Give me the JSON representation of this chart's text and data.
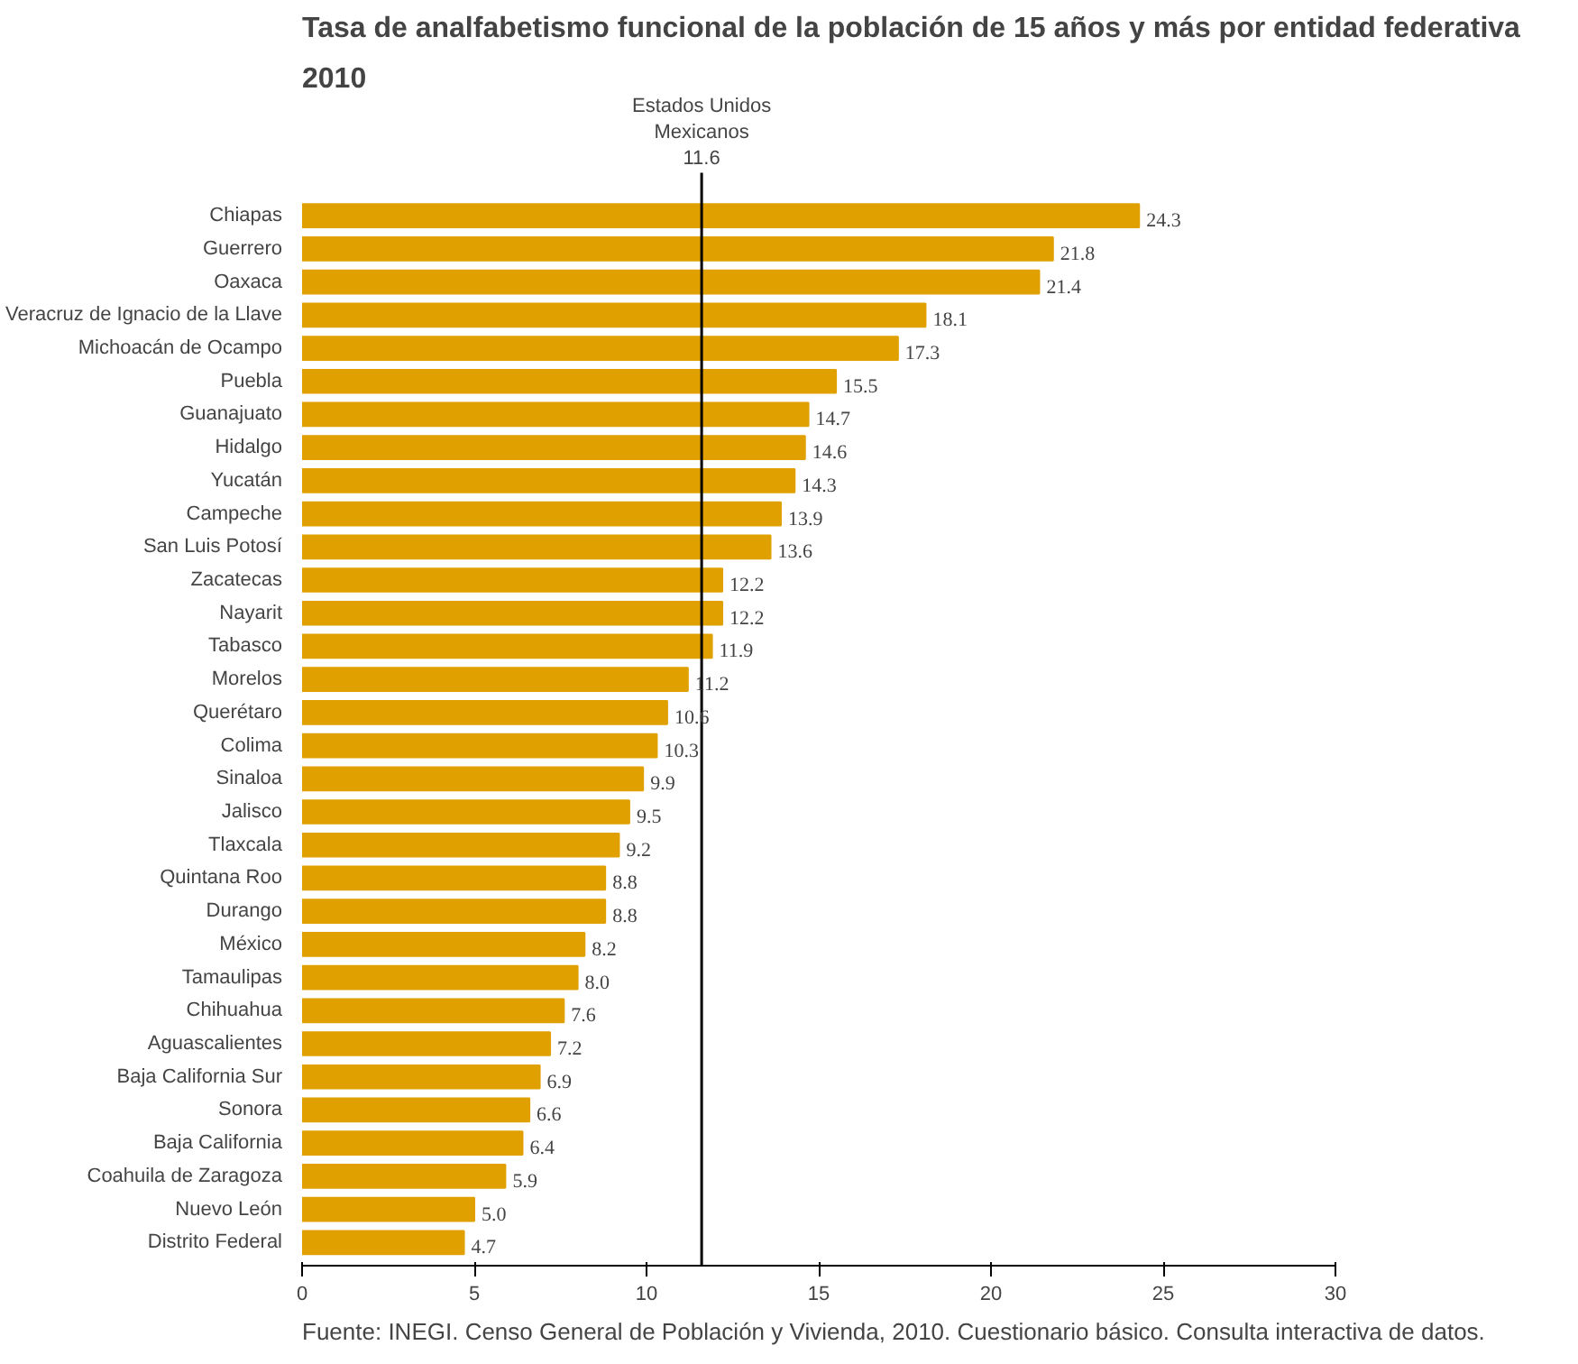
{
  "chart_data": {
    "type": "bar",
    "orientation": "horizontal",
    "title": "Tasa de analfabetismo  funcional de la población de 15 años y más por entidad federativa",
    "subtitle": "2010",
    "categories": [
      "Chiapas",
      "Guerrero",
      "Oaxaca",
      "Veracruz de Ignacio de la Llave",
      "Michoacán de Ocampo",
      "Puebla",
      "Guanajuato",
      "Hidalgo",
      "Yucatán",
      "Campeche",
      "San Luis Potosí",
      "Zacatecas",
      "Nayarit",
      "Tabasco",
      "Morelos",
      "Querétaro",
      "Colima",
      "Sinaloa",
      "Jalisco",
      "Tlaxcala",
      "Quintana Roo",
      "Durango",
      "México",
      "Tamaulipas",
      "Chihuahua",
      "Aguascalientes",
      "Baja California Sur",
      "Sonora",
      "Baja California",
      "Coahuila de Zaragoza",
      "Nuevo León",
      "Distrito Federal"
    ],
    "values": [
      24.3,
      21.8,
      21.4,
      18.1,
      17.3,
      15.5,
      14.7,
      14.6,
      14.3,
      13.9,
      13.6,
      12.2,
      12.2,
      11.9,
      11.2,
      10.6,
      10.3,
      9.9,
      9.5,
      9.2,
      8.8,
      8.8,
      8.2,
      8.0,
      7.6,
      7.2,
      6.9,
      6.6,
      6.4,
      5.9,
      5.0,
      4.7
    ],
    "value_labels": [
      "24.3",
      "21.8",
      "21.4",
      "18.1",
      "17.3",
      "15.5",
      "14.7",
      "14.6",
      "14.3",
      "13.9",
      "13.6",
      "12.2",
      "12.2",
      "11.9",
      "11.2",
      "10.6",
      "10.3",
      "9.9",
      "9.5",
      "9.2",
      "8.8",
      "8.8",
      "8.2",
      "8.0",
      "7.6",
      "7.2",
      "6.9",
      "6.6",
      "6.4",
      "5.9",
      "5.0",
      "4.7"
    ],
    "color": "#e0a000",
    "xlim": [
      0,
      30
    ],
    "xticks": [
      0,
      5,
      10,
      15,
      20,
      25,
      30
    ],
    "grid": false,
    "ref_lines": [
      {
        "axis": "x",
        "value": 11.6,
        "label": "Estados Unidos\nMexicanos\n11.6",
        "color": "#000000"
      }
    ],
    "annotations": [
      "Fuente: INEGI. Censo General de Población y Vivienda, 2010. Cuestionario básico. Consulta interactiva de datos."
    ]
  }
}
